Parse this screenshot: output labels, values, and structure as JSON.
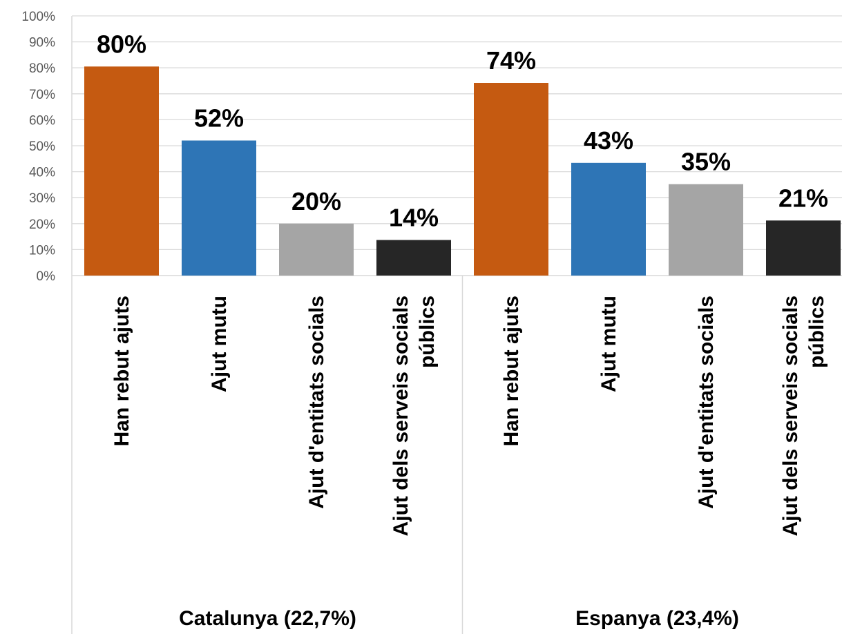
{
  "chart_data": {
    "type": "bar",
    "title": "",
    "xlabel": "",
    "ylabel": "",
    "ylim": [
      0,
      100
    ],
    "y_ticks": [
      "0%",
      "10%",
      "20%",
      "30%",
      "40%",
      "50%",
      "60%",
      "70%",
      "80%",
      "90%",
      "100%"
    ],
    "grid": true,
    "legend": "none",
    "groups": [
      {
        "label": "Catalunya (22,7%)",
        "categories": [
          {
            "label": "Han rebut ajuts",
            "value": 80.5,
            "data_label": "80%",
            "color": "#C55A11"
          },
          {
            "label": "Ajut mutu",
            "value": 52,
            "data_label": "52%",
            "color": "#2E75B6"
          },
          {
            "label": "Ajut d'entitats socials",
            "value": 20,
            "data_label": "20%",
            "color": "#A5A5A5"
          },
          {
            "label": "Ajut dels serveis socials públics",
            "value": 13.7,
            "data_label": "14%",
            "color": "#262626"
          }
        ]
      },
      {
        "label": "Espanya (23,4%)",
        "categories": [
          {
            "label": "Han rebut ajuts",
            "value": 74.2,
            "data_label": "74%",
            "color": "#C55A11"
          },
          {
            "label": "Ajut mutu",
            "value": 43.4,
            "data_label": "43%",
            "color": "#2E75B6"
          },
          {
            "label": "Ajut d'entitats socials",
            "value": 35.2,
            "data_label": "35%",
            "color": "#A5A5A5"
          },
          {
            "label": "Ajut dels serveis socials públics",
            "value": 21.2,
            "data_label": "21%",
            "color": "#262626"
          }
        ]
      }
    ]
  }
}
